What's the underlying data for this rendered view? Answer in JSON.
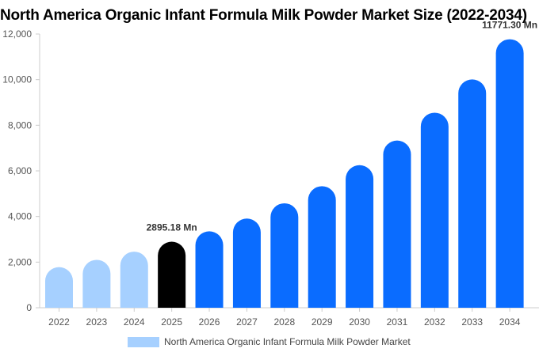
{
  "chart_data": {
    "type": "bar",
    "title": "North America Organic Infant Formula Milk Powder Market Size (2022-2034)",
    "categories": [
      "2022",
      "2023",
      "2024",
      "2025",
      "2026",
      "2027",
      "2028",
      "2029",
      "2030",
      "2031",
      "2032",
      "2033",
      "2034"
    ],
    "series": [
      {
        "name": "North America Organic Infant Formula Milk Powder Market",
        "values": [
          1780,
          2100,
          2460,
          2895.18,
          3350,
          3910,
          4580,
          5330,
          6250,
          7330,
          8550,
          10010,
          11771.3
        ]
      }
    ],
    "bar_colors": [
      "#a6d0ff",
      "#a6d0ff",
      "#a6d0ff",
      "#000000",
      "#0a6cff",
      "#0a6cff",
      "#0a6cff",
      "#0a6cff",
      "#0a6cff",
      "#0a6cff",
      "#0a6cff",
      "#0a6cff",
      "#0a6cff"
    ],
    "data_labels": [
      {
        "index": 3,
        "text": "2895.18 Mn"
      },
      {
        "index": 12,
        "text": "11771.30 Mn"
      }
    ],
    "yticks": [
      "0",
      "2,000",
      "4,000",
      "6,000",
      "8,000",
      "10,000",
      "12,000"
    ],
    "ylim": [
      0,
      12000
    ],
    "xlabel": "",
    "ylabel": "",
    "grid": false,
    "legend_position": "bottom",
    "legend_color": "#a6d0ff"
  }
}
